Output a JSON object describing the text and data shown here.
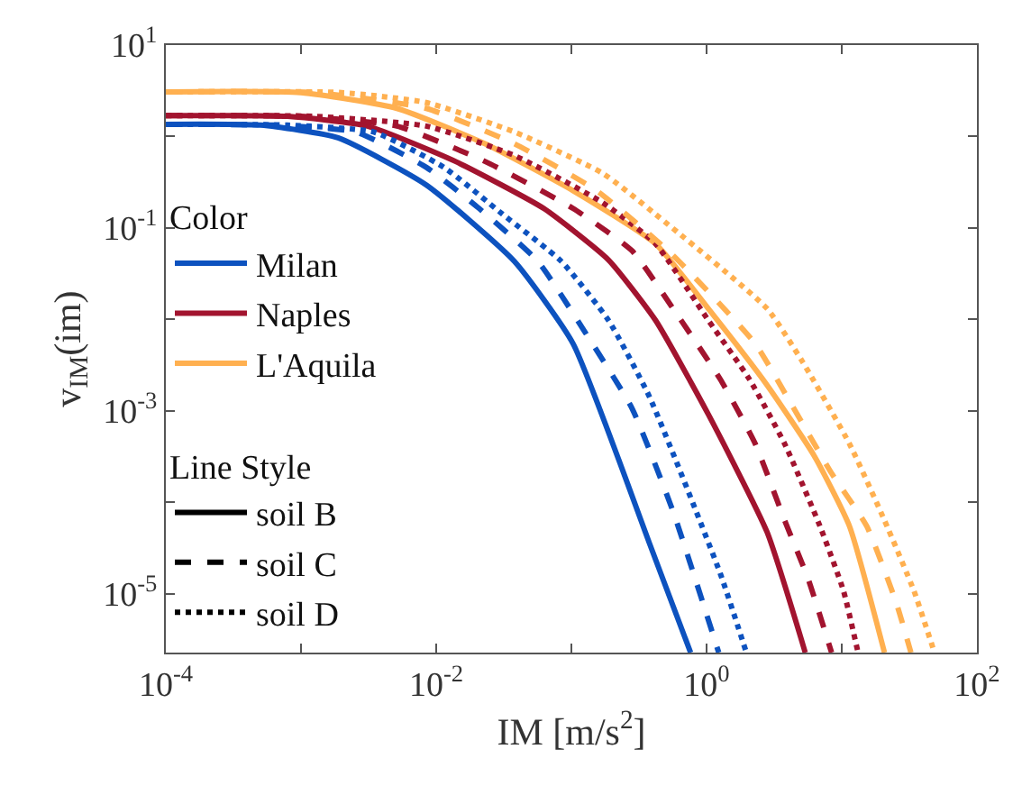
{
  "chart_data": {
    "type": "line",
    "xlabel": "IM [m/s$^{2}$]",
    "ylabel": "v$_{IM}$(im)",
    "legend_title": [
      "Color",
      "Line Style"
    ],
    "legend": "left",
    "log": "xy",
    "xlim": [
      0.0001,
      100
    ],
    "ylim": [
      2.26e-06,
      10
    ],
    "xticks": [
      {
        "value": 0.0001,
        "label": "10$^{-4}$"
      },
      {
        "value": 0.001,
        "label": null
      },
      {
        "value": 0.01,
        "label": "10$^{-2}$"
      },
      {
        "value": 0.1,
        "label": null
      },
      {
        "value": 1,
        "label": "10$^{0}$"
      },
      {
        "value": 10,
        "label": null
      },
      {
        "value": 100,
        "label": "10$^{2}$"
      }
    ],
    "yticks": [
      {
        "value": 1e-05,
        "label": "10$^{-5}$"
      },
      {
        "value": 0.0001,
        "label": null
      },
      {
        "value": 0.001,
        "label": "10$^{-3}$"
      },
      {
        "value": 0.01,
        "label": null
      },
      {
        "value": 0.1,
        "label": "10$^{-1}$"
      },
      {
        "value": 1,
        "label": null
      },
      {
        "value": 10,
        "label": "10$^{1}$"
      }
    ],
    "series": [
      {
        "name": "Milan",
        "color": "#0d52bf",
        "line_style": "solid",
        "x": [
          0.0001,
          0.000501,
          0.00188,
          0.00845,
          0.0379,
          0.103,
          0.378,
          0.762
        ],
        "values": [
          1.36,
          1.33,
          0.966,
          0.295,
          0.043,
          0.00541,
          3.55e-05,
          2.26e-06
        ]
      },
      {
        "name": "Naples",
        "color": "#a2142f",
        "line_style": "solid",
        "x": [
          0.0001,
          0.000794,
          0.0031,
          0.0139,
          0.0625,
          0.188,
          0.419,
          1.03,
          2.8,
          5.37
        ],
        "values": [
          1.69,
          1.66,
          1.3,
          0.533,
          0.163,
          0.0447,
          0.00977,
          0.000912,
          4.71e-05,
          2.26e-06
        ]
      },
      {
        "name": "L'Aquila",
        "color": "#ffb050",
        "line_style": "solid",
        "x": [
          0.0001,
          0.001,
          0.00512,
          0.023,
          0.103,
          0.419,
          1.03,
          2.8,
          6.24,
          11.4,
          20.7
        ],
        "values": [
          3.07,
          3.02,
          2.03,
          0.832,
          0.255,
          0.067,
          0.0131,
          0.00191,
          0.000323,
          5.46e-05,
          2.26e-06
        ]
      },
      {
        "color": "#0d52bf",
        "line_style": "dashed",
        "x": [
          0.0001,
          0.000631,
          0.00254,
          0.00845,
          0.0208,
          0.0565,
          0.126,
          0.281,
          0.565,
          1.23
        ],
        "values": [
          1.36,
          1.33,
          1.12,
          0.46,
          0.163,
          0.043,
          0.00726,
          0.00106,
          7.91e-05,
          2.26e-06
        ]
      },
      {
        "color": "#0d52bf",
        "line_style": "dotted",
        "x": [
          0.0001,
          0.000794,
          0.00344,
          0.0114,
          0.031,
          0.0843,
          0.188,
          0.378,
          1.26,
          1.97
        ],
        "values": [
          1.36,
          1.33,
          1.12,
          0.46,
          0.141,
          0.043,
          0.00977,
          0.00142,
          1.67e-05,
          2.26e-06
        ]
      },
      {
        "color": "#a2142f",
        "line_style": "dashed",
        "x": [
          0.0001,
          0.001,
          0.00512,
          0.023,
          0.103,
          0.281,
          0.565,
          1.26,
          2.29,
          3.78,
          5.65,
          8.41
        ],
        "values": [
          1.69,
          1.66,
          1.3,
          0.533,
          0.163,
          0.0562,
          0.0131,
          0.00222,
          0.000435,
          6.32e-05,
          1.44e-05,
          2.26e-06
        ]
      },
      {
        "color": "#a2142f",
        "line_style": "dotted",
        "x": [
          0.0001,
          0.00126,
          0.00845,
          0.0379,
          0.17,
          0.419,
          1.03,
          2.07,
          3.78,
          6.9,
          10.3,
          13.2
        ],
        "values": [
          1.69,
          1.66,
          1.3,
          0.619,
          0.189,
          0.067,
          0.00975,
          0.00222,
          0.000435,
          5.46e-05,
          1.07e-05,
          2.26e-06
        ]
      },
      {
        "color": "#ffb050",
        "line_style": "dashed",
        "x": [
          0.0001,
          0.00126,
          0.00845,
          0.0379,
          0.154,
          0.565,
          2.29,
          4.18,
          8.41,
          15.3,
          25.3,
          32.5
        ],
        "values": [
          3.07,
          3.02,
          2.03,
          0.832,
          0.255,
          0.0501,
          0.0054,
          0.00122,
          0.000207,
          5.46e-05,
          7.94e-06,
          2.26e-06
        ]
      },
      {
        "color": "#ffb050",
        "line_style": "dotted",
        "x": [
          0.0001,
          0.002,
          0.00845,
          0.0379,
          0.17,
          0.419,
          2.8,
          5.11,
          11.4,
          20.7,
          34.2,
          48.5
        ],
        "values": [
          3.07,
          3.02,
          2.35,
          1.12,
          0.397,
          0.141,
          0.0131,
          0.00346,
          0.000435,
          6.32e-05,
          1.07e-05,
          2.26e-06
        ]
      },
      {
        "name": "soil B",
        "color": "#000000",
        "line_style": "solid"
      },
      {
        "name": "soil C",
        "color": "#000000",
        "line_style": "dashed"
      },
      {
        "name": "soil D",
        "color": "#000000",
        "line_style": "dotted"
      }
    ]
  }
}
